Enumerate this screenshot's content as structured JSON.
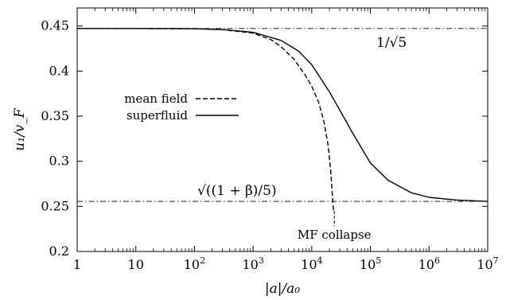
{
  "chart_data": {
    "type": "line",
    "xlabel": "|a|/a₀",
    "ylabel": "u₁/v_F",
    "x_scale": "log",
    "xlim": [
      1,
      10000000
    ],
    "ylim": [
      0.2,
      0.47
    ],
    "grid": false,
    "legend_position": "center-left",
    "x_ticks": [
      {
        "value": 1,
        "label": "1"
      },
      {
        "value": 10,
        "label": "10"
      },
      {
        "value": 100,
        "label": "10",
        "exp": "2"
      },
      {
        "value": 1000,
        "label": "10",
        "exp": "3"
      },
      {
        "value": 10000,
        "label": "10",
        "exp": "4"
      },
      {
        "value": 100000,
        "label": "10",
        "exp": "5"
      },
      {
        "value": 1000000,
        "label": "10",
        "exp": "6"
      },
      {
        "value": 10000000,
        "label": "10",
        "exp": "7"
      }
    ],
    "y_ticks": [
      {
        "value": 0.2,
        "label": "0.2"
      },
      {
        "value": 0.25,
        "label": "0.25"
      },
      {
        "value": 0.3,
        "label": "0.3"
      },
      {
        "value": 0.35,
        "label": "0.35"
      },
      {
        "value": 0.4,
        "label": "0.4"
      },
      {
        "value": 0.45,
        "label": "0.45"
      }
    ],
    "reference_lines": [
      {
        "y": 0.4472,
        "label": "1/√5"
      },
      {
        "y": 0.2555,
        "label": "√((1 + β)/5)"
      }
    ],
    "series": [
      {
        "name": "mean field",
        "style": "dashed",
        "x": [
          1,
          10,
          100,
          300,
          1000,
          2000,
          3000,
          5000,
          8000,
          10000,
          13000,
          16000,
          19000,
          21000,
          22500,
          23500
        ],
        "y": [
          0.4472,
          0.4472,
          0.447,
          0.446,
          0.442,
          0.435,
          0.427,
          0.413,
          0.394,
          0.383,
          0.366,
          0.345,
          0.318,
          0.29,
          0.262,
          0.245
        ]
      },
      {
        "name": "superfluid",
        "style": "solid",
        "x": [
          1,
          10,
          100,
          300,
          1000,
          3000,
          6000,
          10000,
          20000,
          30000,
          50000,
          100000,
          200000,
          500000,
          1000000,
          3000000,
          10000000
        ],
        "y": [
          0.4472,
          0.4472,
          0.447,
          0.446,
          0.443,
          0.434,
          0.422,
          0.407,
          0.377,
          0.357,
          0.331,
          0.298,
          0.279,
          0.265,
          0.26,
          0.257,
          0.2555
        ]
      }
    ],
    "annotations": [
      {
        "text": "MF collapse",
        "x": 23500,
        "y": 0.245
      }
    ]
  }
}
